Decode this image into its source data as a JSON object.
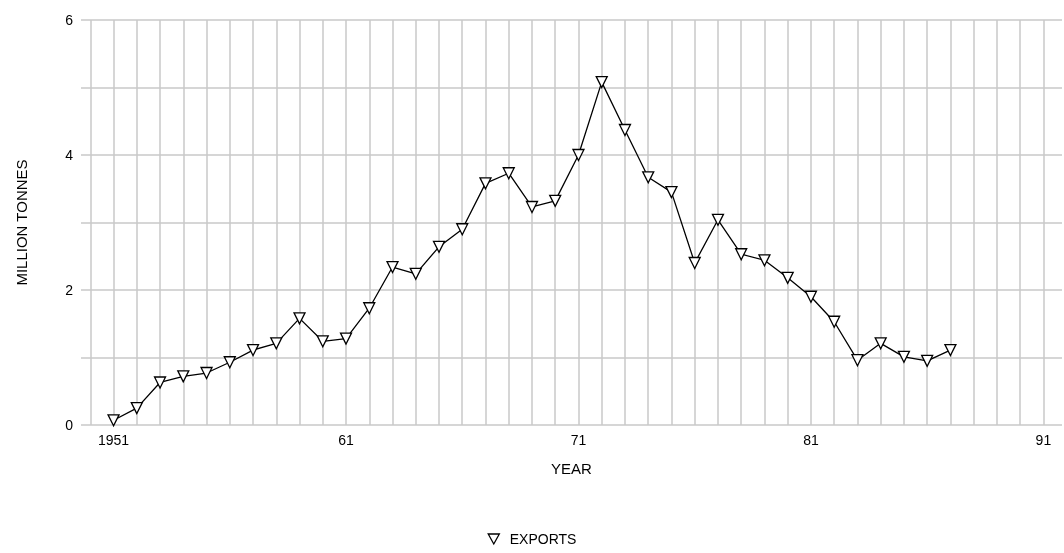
{
  "chart_data": {
    "type": "line",
    "xlabel": "YEAR",
    "ylabel": "MILLION TONNES",
    "x": [
      1951,
      1952,
      1953,
      1954,
      1955,
      1956,
      1957,
      1958,
      1959,
      1960,
      1961,
      1962,
      1963,
      1964,
      1965,
      1966,
      1967,
      1968,
      1969,
      1970,
      1971,
      1972,
      1973,
      1974,
      1975,
      1976,
      1977,
      1978,
      1979,
      1980,
      1981,
      1982,
      1983,
      1984,
      1985,
      1986,
      1987
    ],
    "series": [
      {
        "name": "EXPORTS",
        "color": "#000000",
        "values": [
          0.07,
          0.25,
          0.63,
          0.72,
          0.77,
          0.93,
          1.11,
          1.21,
          1.58,
          1.24,
          1.28,
          1.73,
          2.34,
          2.24,
          2.64,
          2.9,
          3.58,
          3.73,
          3.23,
          3.32,
          4.0,
          5.08,
          4.37,
          3.67,
          3.45,
          2.4,
          3.04,
          2.53,
          2.44,
          2.18,
          1.9,
          1.53,
          0.96,
          1.21,
          1.01,
          0.95,
          1.11
        ]
      }
    ],
    "xlim": [
      1949.6,
      1991.8
    ],
    "xticks": [
      {
        "value": 1950,
        "label": null
      },
      {
        "value": 1951,
        "label": "1951"
      },
      {
        "value": 1952,
        "label": null
      },
      {
        "value": 1953,
        "label": null
      },
      {
        "value": 1954,
        "label": null
      },
      {
        "value": 1955,
        "label": null
      },
      {
        "value": 1956,
        "label": null
      },
      {
        "value": 1957,
        "label": null
      },
      {
        "value": 1958,
        "label": null
      },
      {
        "value": 1959,
        "label": null
      },
      {
        "value": 1960,
        "label": null
      },
      {
        "value": 1961,
        "label": "61"
      },
      {
        "value": 1962,
        "label": null
      },
      {
        "value": 1963,
        "label": null
      },
      {
        "value": 1964,
        "label": null
      },
      {
        "value": 1965,
        "label": null
      },
      {
        "value": 1966,
        "label": null
      },
      {
        "value": 1967,
        "label": null
      },
      {
        "value": 1968,
        "label": null
      },
      {
        "value": 1969,
        "label": null
      },
      {
        "value": 1970,
        "label": null
      },
      {
        "value": 1971,
        "label": "71"
      },
      {
        "value": 1972,
        "label": null
      },
      {
        "value": 1973,
        "label": null
      },
      {
        "value": 1974,
        "label": null
      },
      {
        "value": 1975,
        "label": null
      },
      {
        "value": 1976,
        "label": null
      },
      {
        "value": 1977,
        "label": null
      },
      {
        "value": 1978,
        "label": null
      },
      {
        "value": 1979,
        "label": null
      },
      {
        "value": 1980,
        "label": null
      },
      {
        "value": 1981,
        "label": "81"
      },
      {
        "value": 1982,
        "label": null
      },
      {
        "value": 1983,
        "label": null
      },
      {
        "value": 1984,
        "label": null
      },
      {
        "value": 1985,
        "label": null
      },
      {
        "value": 1986,
        "label": null
      },
      {
        "value": 1987,
        "label": null
      },
      {
        "value": 1988,
        "label": null
      },
      {
        "value": 1989,
        "label": null
      },
      {
        "value": 1990,
        "label": null
      },
      {
        "value": 1991,
        "label": "91"
      }
    ],
    "ylim": [
      0,
      6
    ],
    "yticks": [
      0,
      {
        "value": 1,
        "label": null
      },
      2,
      {
        "value": 3,
        "label": null
      },
      4,
      {
        "value": 5,
        "label": null
      },
      6
    ],
    "grid": true,
    "legend": "bottom",
    "marker": "triangle",
    "line_style": "solid"
  }
}
